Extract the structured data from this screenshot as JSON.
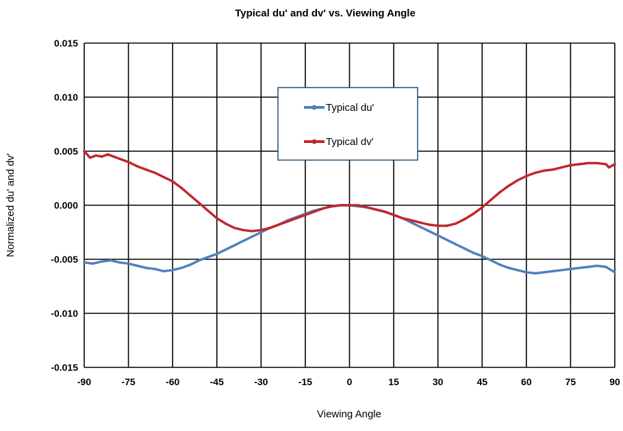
{
  "chart_data": {
    "type": "line",
    "title": "Typical du' and dv' vs. Viewing Angle",
    "xlabel": "Viewing Angle",
    "ylabel": "Normalized du' and dv'",
    "xlim": [
      -90,
      90
    ],
    "ylim": [
      -0.015,
      0.015
    ],
    "x_ticks": [
      "-90",
      "-75",
      "-60",
      "-45",
      "-30",
      "-15",
      "0",
      "15",
      "30",
      "45",
      "60",
      "75",
      "90"
    ],
    "y_ticks": [
      "0.015",
      "0.010",
      "0.005",
      "0.000",
      "-0.005",
      "-0.010",
      "-0.015"
    ],
    "grid": true,
    "legend_position": "top-center",
    "series": [
      {
        "name": "Typical du'",
        "color": "#4F81BD",
        "x": [
          -90,
          -87,
          -84,
          -81,
          -78,
          -75,
          -72,
          -69,
          -66,
          -63,
          -60,
          -57,
          -54,
          -51,
          -48,
          -45,
          -42,
          -39,
          -36,
          -33,
          -30,
          -27,
          -24,
          -21,
          -18,
          -15,
          -12,
          -9,
          -6,
          -3,
          0,
          3,
          6,
          9,
          12,
          15,
          18,
          21,
          24,
          27,
          30,
          33,
          36,
          39,
          42,
          45,
          48,
          51,
          54,
          57,
          60,
          63,
          66,
          69,
          72,
          75,
          78,
          81,
          84,
          87,
          90
        ],
        "y": [
          -0.0053,
          -0.0054,
          -0.0052,
          -0.0051,
          -0.0053,
          -0.0054,
          -0.0056,
          -0.0058,
          -0.0059,
          -0.0061,
          -0.006,
          -0.0058,
          -0.0055,
          -0.0051,
          -0.0048,
          -0.0045,
          -0.0041,
          -0.0037,
          -0.0033,
          -0.0029,
          -0.0025,
          -0.0021,
          -0.0018,
          -0.0014,
          -0.0011,
          -0.0008,
          -0.0005,
          -0.0003,
          -0.0001,
          0.0,
          0.0,
          -0.0001,
          -0.0002,
          -0.0004,
          -0.0006,
          -0.0009,
          -0.0012,
          -0.0016,
          -0.002,
          -0.0024,
          -0.0028,
          -0.0032,
          -0.0036,
          -0.004,
          -0.0044,
          -0.0047,
          -0.0051,
          -0.0055,
          -0.0058,
          -0.006,
          -0.0062,
          -0.0063,
          -0.0062,
          -0.0061,
          -0.006,
          -0.0059,
          -0.0058,
          -0.0057,
          -0.0056,
          -0.0057,
          -0.0062
        ]
      },
      {
        "name": "Typical dv'",
        "color": "#C0282D",
        "x": [
          -90,
          -88,
          -86,
          -84,
          -82,
          -80,
          -78,
          -75,
          -72,
          -69,
          -66,
          -63,
          -60,
          -57,
          -54,
          -51,
          -48,
          -45,
          -42,
          -39,
          -36,
          -33,
          -30,
          -27,
          -24,
          -21,
          -18,
          -15,
          -12,
          -9,
          -6,
          -3,
          0,
          3,
          6,
          9,
          12,
          15,
          18,
          21,
          24,
          27,
          30,
          33,
          36,
          39,
          42,
          45,
          48,
          51,
          54,
          57,
          60,
          63,
          66,
          69,
          72,
          75,
          78,
          81,
          84,
          87,
          88,
          90
        ],
        "y": [
          0.005,
          0.0044,
          0.0046,
          0.0045,
          0.0047,
          0.0045,
          0.0043,
          0.004,
          0.0036,
          0.0033,
          0.003,
          0.0026,
          0.0022,
          0.0016,
          0.0009,
          0.0002,
          -0.0005,
          -0.0012,
          -0.0017,
          -0.0021,
          -0.0023,
          -0.0024,
          -0.0023,
          -0.0021,
          -0.0018,
          -0.0015,
          -0.0012,
          -0.0009,
          -0.0006,
          -0.0003,
          -0.0001,
          0.0,
          0.0,
          0.0,
          -0.0002,
          -0.0004,
          -0.0006,
          -0.0009,
          -0.0012,
          -0.0014,
          -0.0016,
          -0.0018,
          -0.0019,
          -0.0019,
          -0.0017,
          -0.0013,
          -0.0008,
          -0.0002,
          0.0005,
          0.0012,
          0.0018,
          0.0023,
          0.0027,
          0.003,
          0.0032,
          0.0033,
          0.0035,
          0.0037,
          0.0038,
          0.0039,
          0.0039,
          0.0038,
          0.0035,
          0.0038
        ]
      }
    ]
  }
}
